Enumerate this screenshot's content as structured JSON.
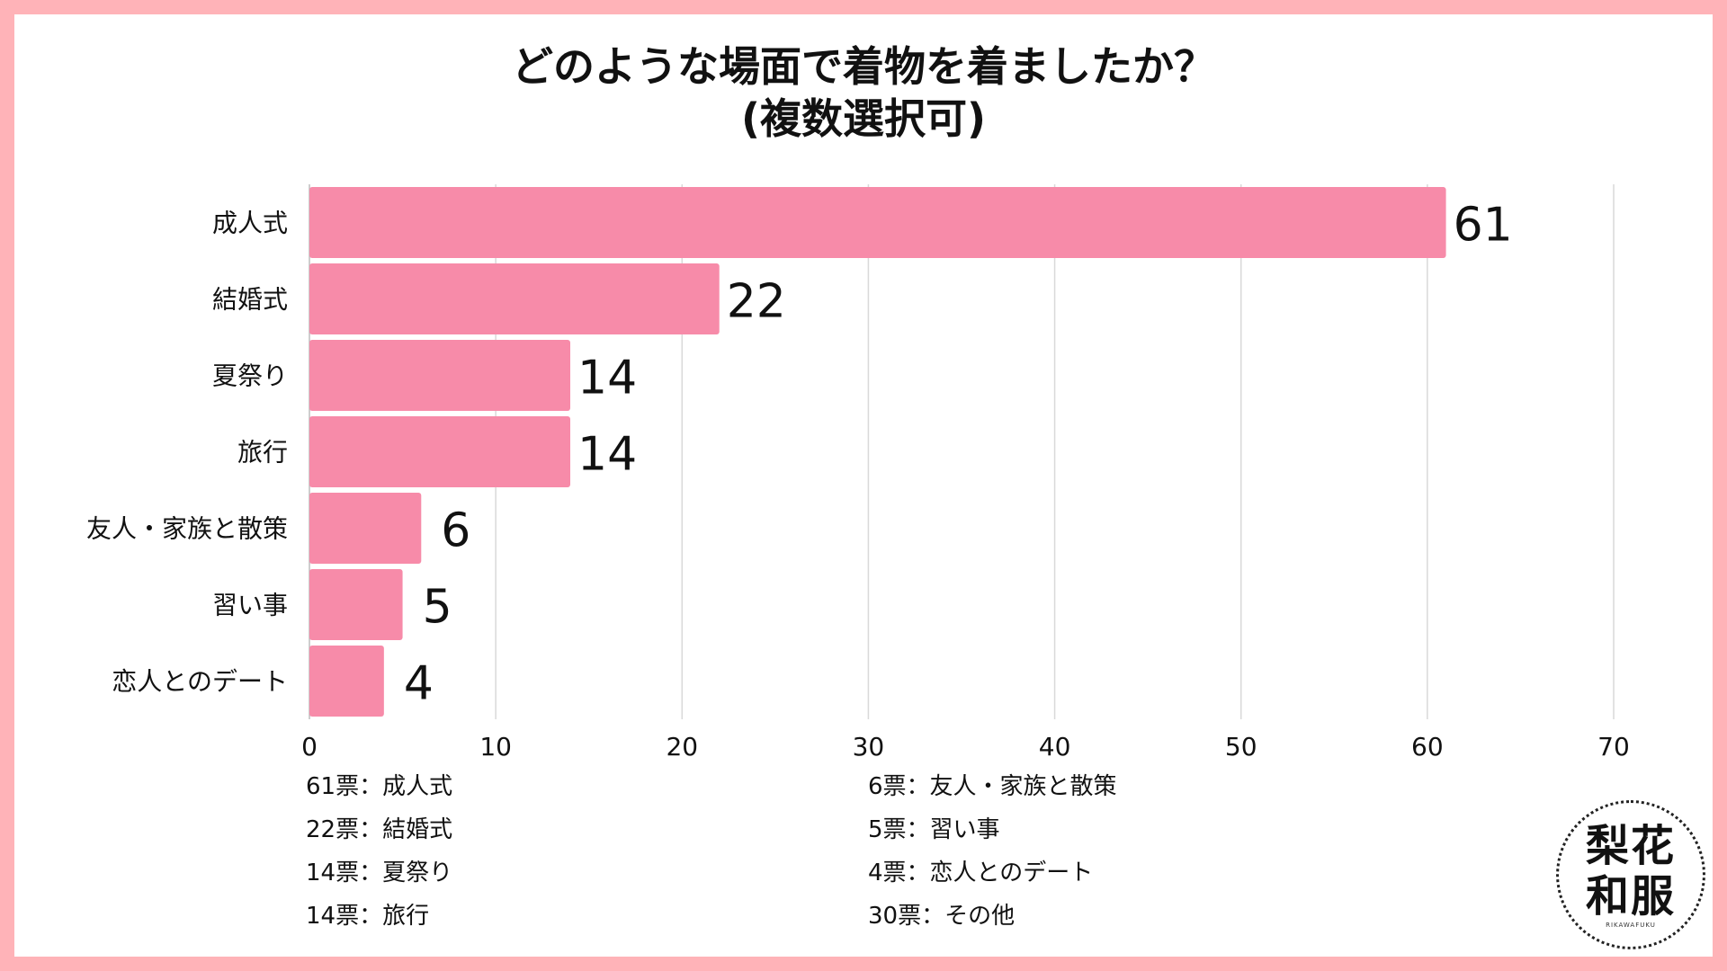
{
  "title": {
    "line1": "どのような場面で着物を着ましたか？",
    "line2": "(複数選択可)"
  },
  "chart_data": {
    "type": "bar",
    "orientation": "horizontal",
    "categories": [
      "成人式",
      "結婚式",
      "夏祭り",
      "旅行",
      "友人・家族と散策",
      "習い事",
      "恋人とのデート"
    ],
    "values": [
      61,
      22,
      14,
      14,
      6,
      5,
      4
    ],
    "xlim": [
      0,
      70
    ],
    "xticks": [
      0,
      10,
      20,
      30,
      40,
      50,
      60,
      70
    ],
    "grid": "vertical",
    "bar_color": "#f78ba9",
    "title": "どのような場面で着物を着ましたか？(複数選択可)"
  },
  "notes": {
    "left": [
      "61票：成人式",
      "22票：結婚式",
      "14票：夏祭り",
      "14票：旅行"
    ],
    "right": [
      "6票：友人・家族と散策",
      "5票：習い事",
      "4票：恋人とのデート",
      "30票：その他"
    ]
  },
  "logo": {
    "line1": "梨花",
    "line2": "和服",
    "small": "RIKAWAFUKU"
  },
  "colors": {
    "frame": "#ffb3b8",
    "bar": "#f78ba9",
    "grid": "#d9d9d9",
    "text": "#111111"
  }
}
